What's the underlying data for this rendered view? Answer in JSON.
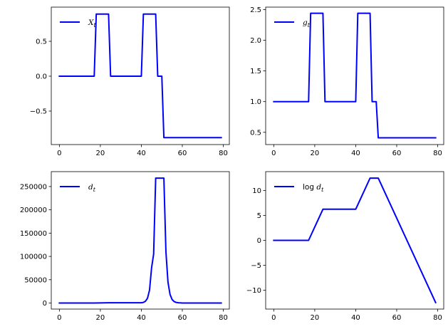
{
  "chart_data": [
    {
      "type": "line",
      "legend": {
        "label": "X",
        "subscript": "t",
        "prefix": "",
        "location": "upper-left"
      },
      "color": "#0000ff",
      "xlim": [
        -3.95,
        82.95
      ],
      "ylim": [
        -0.98,
        0.99
      ],
      "xticks": [
        0,
        20,
        40,
        60,
        80
      ],
      "yticks": [
        -0.5,
        0.0,
        0.5
      ],
      "ytick_labels": [
        "−0.5",
        "0.0",
        "0.5"
      ],
      "points": [
        [
          0,
          0.0
        ],
        [
          17,
          0.0
        ],
        [
          18,
          0.89
        ],
        [
          24,
          0.89
        ],
        [
          25,
          0.0
        ],
        [
          40,
          0.0
        ],
        [
          41,
          0.89
        ],
        [
          47,
          0.89
        ],
        [
          48,
          0.0
        ],
        [
          50,
          0.0
        ],
        [
          51,
          -0.88
        ],
        [
          79,
          -0.88
        ]
      ]
    },
    {
      "type": "line",
      "legend": {
        "label": "g",
        "subscript": "t",
        "prefix": "",
        "location": "upper-left"
      },
      "color": "#0000ff",
      "xlim": [
        -3.95,
        82.95
      ],
      "ylim": [
        0.3,
        2.54
      ],
      "xticks": [
        0,
        20,
        40,
        60,
        80
      ],
      "yticks": [
        0.5,
        1.0,
        1.5,
        2.0,
        2.5
      ],
      "ytick_labels": [
        "0.5",
        "1.0",
        "1.5",
        "2.0",
        "2.5"
      ],
      "points": [
        [
          0,
          1.0
        ],
        [
          17,
          1.0
        ],
        [
          18,
          2.44
        ],
        [
          24,
          2.44
        ],
        [
          25,
          1.0
        ],
        [
          40,
          1.0
        ],
        [
          41,
          2.44
        ],
        [
          47,
          2.44
        ],
        [
          48,
          1.0
        ],
        [
          50,
          1.0
        ],
        [
          51,
          0.41
        ],
        [
          79,
          0.41
        ]
      ]
    },
    {
      "type": "line",
      "legend": {
        "label": "d",
        "subscript": "t",
        "prefix": "",
        "location": "upper-left"
      },
      "color": "#0000ff",
      "xlim": [
        -3.95,
        82.95
      ],
      "ylim": [
        -13000,
        282000
      ],
      "xticks": [
        0,
        20,
        40,
        60,
        80
      ],
      "yticks": [
        0,
        50000,
        100000,
        150000,
        200000,
        250000
      ],
      "ytick_labels": [
        "0",
        "50000",
        "100000",
        "150000",
        "200000",
        "250000"
      ],
      "points": [
        [
          0,
          1
        ],
        [
          17,
          1
        ],
        [
          24,
          520
        ],
        [
          40,
          520
        ],
        [
          41,
          1380
        ],
        [
          42,
          3750
        ],
        [
          43,
          10200
        ],
        [
          44,
          27800
        ],
        [
          45,
          75500
        ],
        [
          46,
          105000
        ],
        [
          47,
          268000
        ],
        [
          51,
          268000
        ],
        [
          52,
          110000
        ],
        [
          53,
          45000
        ],
        [
          54,
          18500
        ],
        [
          55,
          7600
        ],
        [
          56,
          3100
        ],
        [
          57,
          1300
        ],
        [
          58,
          520
        ],
        [
          60,
          90
        ],
        [
          65,
          1
        ],
        [
          79,
          0
        ]
      ]
    },
    {
      "type": "line",
      "legend": {
        "label": "d",
        "subscript": "t",
        "prefix": "log ",
        "location": "upper-left"
      },
      "color": "#0000ff",
      "xlim": [
        -3.95,
        82.95
      ],
      "ylim": [
        -13.8,
        13.8
      ],
      "xticks": [
        0,
        20,
        40,
        60,
        80
      ],
      "yticks": [
        -10,
        -5,
        0,
        5,
        10
      ],
      "ytick_labels": [
        "−10",
        "−5",
        "0",
        "5",
        "10"
      ],
      "points": [
        [
          0,
          0.0
        ],
        [
          17,
          0.0
        ],
        [
          24,
          6.25
        ],
        [
          40,
          6.25
        ],
        [
          47,
          12.5
        ],
        [
          51,
          12.5
        ],
        [
          79,
          -12.5
        ]
      ]
    }
  ]
}
